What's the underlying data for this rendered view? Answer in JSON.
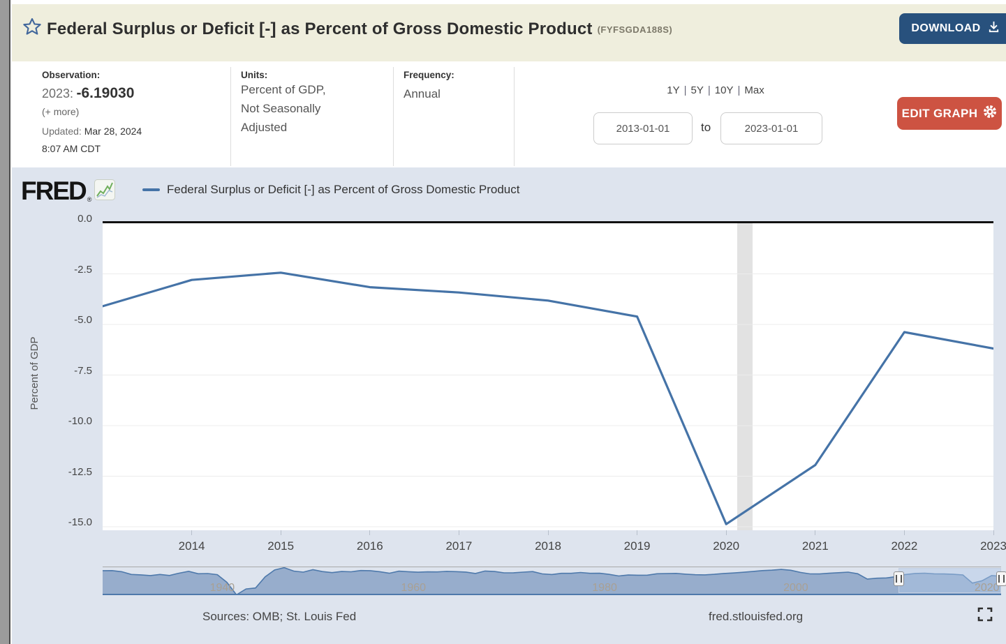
{
  "header": {
    "title": "Federal Surplus or Deficit [-] as Percent of Gross Domestic Product",
    "series_id": "(FYFSGDA188S)",
    "download_label": "DOWNLOAD"
  },
  "controls": {
    "observation": {
      "label": "Observation:",
      "date": "2023:",
      "value": "-6.19030",
      "more_link": "(+ more)",
      "updated_label": "Updated:",
      "updated_value": "Mar 28, 2024",
      "updated_time": "8:07 AM CDT"
    },
    "units": {
      "label": "Units:",
      "line1": "Percent of GDP,",
      "line2": "Not Seasonally",
      "line3": "Adjusted"
    },
    "frequency": {
      "label": "Frequency:",
      "value": "Annual"
    },
    "range_links": [
      "1Y",
      "5Y",
      "10Y",
      "Max"
    ],
    "range_separator": "|",
    "date_from": "2013-01-01",
    "date_to_word": "to",
    "date_to": "2023-01-01",
    "edit_graph_label": "EDIT GRAPH"
  },
  "graph": {
    "brand": "FRED",
    "brand_mark": "®",
    "legend_label": "Federal Surplus or Deficit [-] as Percent of Gross Domestic Product",
    "y_axis_title": "Percent of GDP",
    "accent_color": "#4573a7",
    "recession_band_color": "#e2e2e2"
  },
  "chart_data": [
    {
      "type": "line",
      "title": "Federal Surplus or Deficit [-] as Percent of Gross Domestic Product",
      "ylabel": "Percent of GDP",
      "x": [
        2013,
        2014,
        2015,
        2016,
        2017,
        2018,
        2019,
        2020,
        2021,
        2022,
        2023
      ],
      "values": [
        -4.1,
        -2.8,
        -2.44,
        -3.16,
        -3.42,
        -3.82,
        -4.61,
        -14.87,
        -11.95,
        -5.38,
        -6.1903
      ],
      "xticks": [
        "2014",
        "2015",
        "2016",
        "2017",
        "2018",
        "2019",
        "2020",
        "2021",
        "2022",
        "2023"
      ],
      "yticks": [
        "0.0",
        "-2.5",
        "-5.0",
        "-7.5",
        "-10.0",
        "-12.5",
        "-15.0"
      ],
      "xlim": [
        2013,
        2023
      ],
      "ylim": [
        -15.3,
        0.1
      ],
      "grid": true,
      "recession_band_x": [
        2020.12,
        2020.29
      ],
      "line_color": "#4573a7"
    },
    {
      "type": "area",
      "role": "range-selector",
      "x_start": 1929,
      "x_end": 2023,
      "values": [
        0.7,
        0.8,
        -0.6,
        -4.0,
        -4.5,
        -5.4,
        -4.0,
        -5.3,
        -2.4,
        -0.1,
        -3.1,
        -2.9,
        -4.3,
        -13.9,
        -29.6,
        -22.2,
        -21.0,
        -7.0,
        1.6,
        4.5,
        0.2,
        -1.1,
        1.9,
        -0.4,
        -1.7,
        -0.3,
        -0.7,
        0.9,
        0.7,
        -0.6,
        -2.5,
        0.1,
        -0.6,
        -1.2,
        -0.8,
        -0.9,
        -0.2,
        -0.5,
        -1.0,
        -2.8,
        0.3,
        -0.3,
        -2.0,
        -1.9,
        -1.1,
        -0.4,
        -3.3,
        -4.1,
        -2.6,
        -2.6,
        -1.6,
        -2.6,
        -2.5,
        -3.9,
        -5.9,
        -4.7,
        -5.0,
        -4.9,
        -3.1,
        -3.0,
        -2.7,
        -3.7,
        -4.4,
        -4.5,
        -3.8,
        -2.8,
        -2.2,
        -1.3,
        -0.3,
        0.8,
        1.3,
        2.3,
        1.2,
        -1.5,
        -3.3,
        -3.4,
        -2.5,
        -1.8,
        -1.1,
        -3.1,
        -9.8,
        -8.7,
        -8.4,
        -6.7,
        -4.1,
        -2.8,
        -2.4,
        -3.2,
        -3.4,
        -3.8,
        -4.6,
        -14.9,
        -12.0,
        -5.4,
        -6.2
      ],
      "inner_labels": [
        1940,
        1960,
        1980,
        2000,
        2020
      ],
      "selection": [
        2013,
        2023
      ],
      "fill_color": "#92aac9",
      "line_color": "#4e79ab"
    }
  ],
  "footer": {
    "sources": "Sources: OMB; St. Louis Fed",
    "site": "fred.stlouisfed.org"
  },
  "icons": {
    "star": "star-icon",
    "download": "download-icon",
    "gear": "gear-icon",
    "fred_chart": "fred-chart-icon",
    "fullscreen": "fullscreen-icon"
  }
}
